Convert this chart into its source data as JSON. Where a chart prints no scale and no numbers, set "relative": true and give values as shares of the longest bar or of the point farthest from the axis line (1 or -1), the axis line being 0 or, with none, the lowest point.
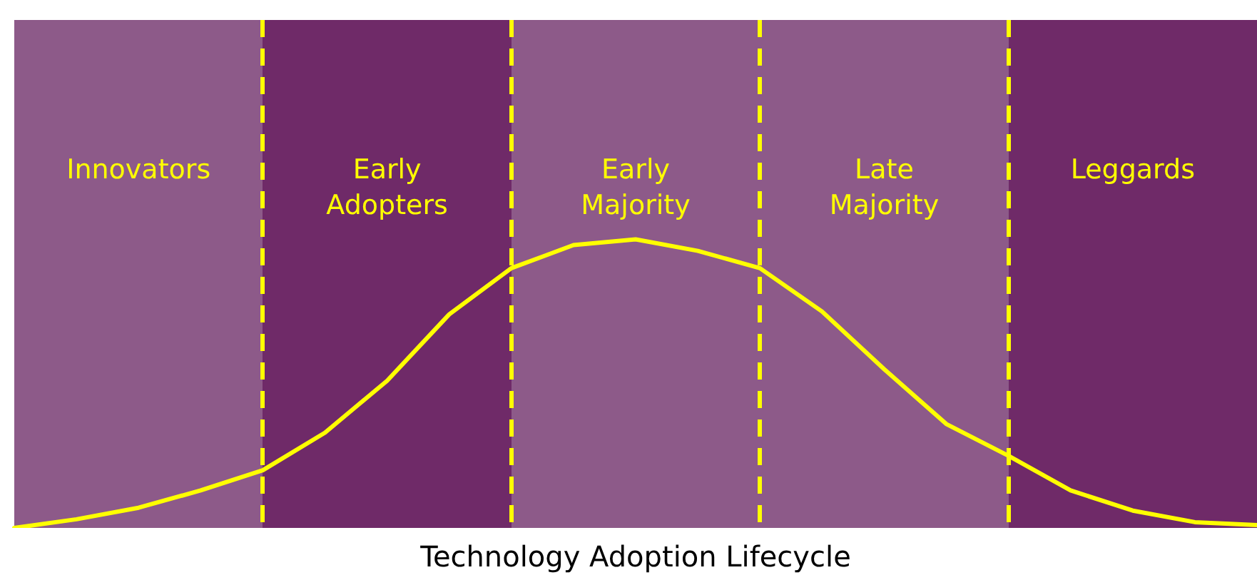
{
  "chart_data": {
    "type": "line",
    "title": "Technology Adoption Lifecycle",
    "relative": true,
    "categories": [
      null,
      null,
      "Innovators",
      null,
      null,
      null,
      "Early Adopters",
      null,
      null,
      null,
      "Early Majority",
      null,
      null,
      null,
      "Late Majority",
      null,
      null,
      null,
      "Leggards",
      null,
      null
    ],
    "series": [
      {
        "color": "#ffff00",
        "values": [
          0,
          0.03,
          0.07,
          0.13,
          0.2,
          0.33,
          0.51,
          0.74,
          0.9,
          0.98,
          1,
          0.96,
          0.9,
          0.75,
          0.55,
          0.36,
          0.25,
          0.13,
          0.06,
          0.02,
          0.01
        ]
      }
    ],
    "legend": false,
    "grid": "x",
    "marker": "none",
    "line_style": "solid"
  }
}
